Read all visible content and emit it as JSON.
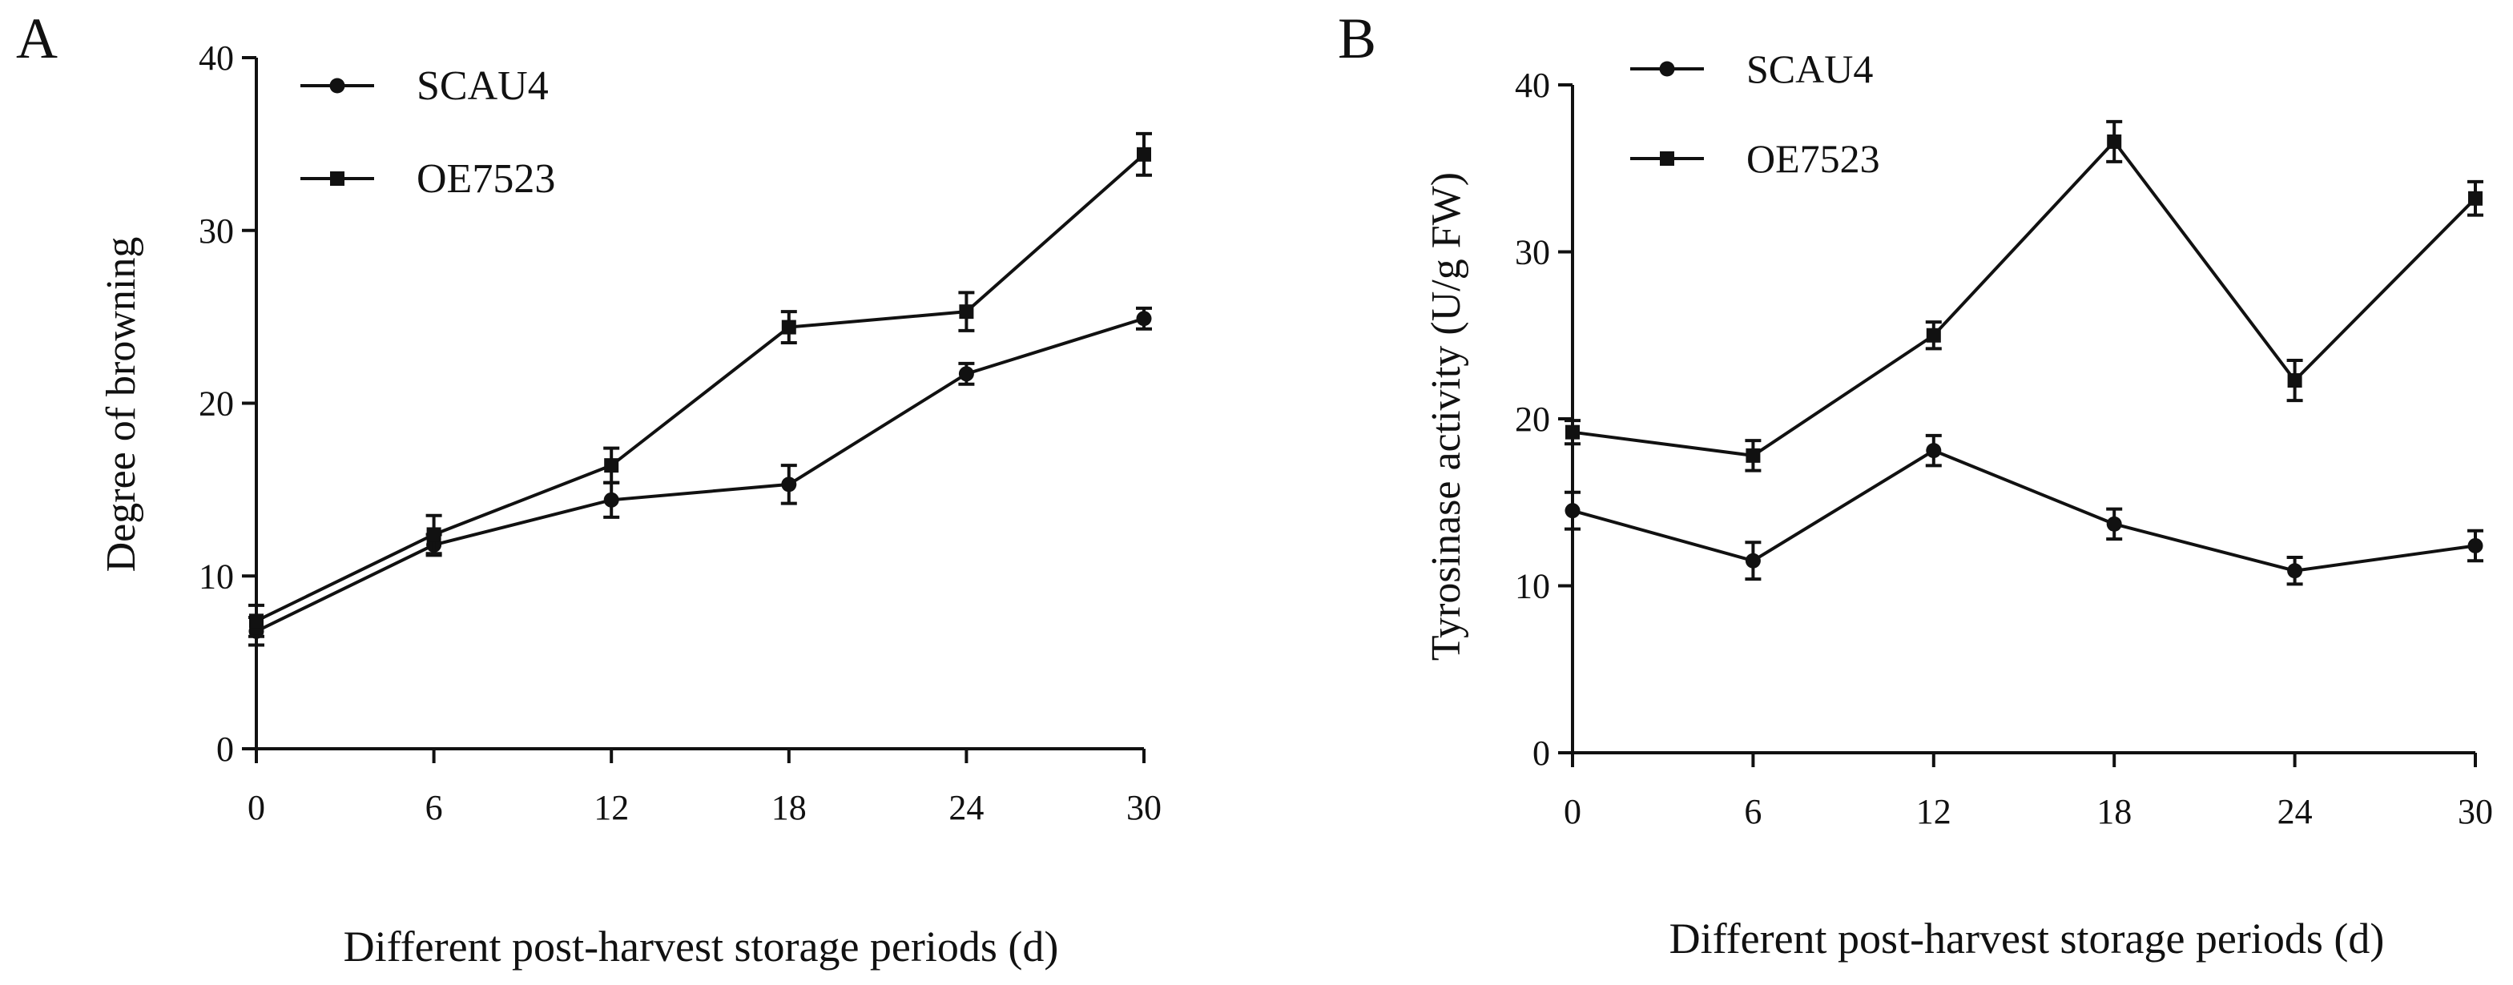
{
  "chart_data": [
    {
      "panel_label": "A",
      "type": "line",
      "title": "",
      "xlabel": "Different post-harvest storage periods (d)",
      "ylabel": "Degree of browning",
      "x": [
        0,
        6,
        12,
        18,
        24,
        30
      ],
      "xticks": [
        "0",
        "6",
        "12",
        "18",
        "24",
        "30"
      ],
      "yticks": [
        "0",
        "10",
        "20",
        "30",
        "40"
      ],
      "xlim": [
        0,
        30
      ],
      "ylim": [
        0,
        40
      ],
      "grid": false,
      "legend": "top-left",
      "series": [
        {
          "name": "SCAU4",
          "marker": "circle",
          "values": [
            6.8,
            11.8,
            14.4,
            15.3,
            21.7,
            24.9
          ],
          "errors": [
            0.8,
            0.6,
            1.0,
            1.1,
            0.6,
            0.6
          ]
        },
        {
          "name": "OE7523",
          "marker": "square",
          "values": [
            7.4,
            12.4,
            16.4,
            24.4,
            25.3,
            34.4
          ],
          "errors": [
            0.9,
            1.1,
            1.0,
            0.9,
            1.1,
            1.2
          ]
        }
      ]
    },
    {
      "panel_label": "B",
      "type": "line",
      "title": "",
      "xlabel": "Different post-harvest storage periods (d)",
      "ylabel": "Tyrosinase activity (U/g FW)",
      "x": [
        0,
        6,
        12,
        18,
        24,
        30
      ],
      "xticks": [
        "0",
        "6",
        "12",
        "18",
        "24",
        "30"
      ],
      "yticks": [
        "0",
        "10",
        "20",
        "30",
        "40"
      ],
      "xlim": [
        0,
        30
      ],
      "ylim": [
        0,
        40
      ],
      "grid": false,
      "legend": "top-left",
      "series": [
        {
          "name": "SCAU4",
          "marker": "circle",
          "values": [
            14.5,
            11.5,
            18.1,
            13.7,
            10.9,
            12.4
          ],
          "errors": [
            1.1,
            1.1,
            0.9,
            0.9,
            0.8,
            0.9
          ]
        },
        {
          "name": "OE7523",
          "marker": "square",
          "values": [
            19.2,
            17.8,
            25.0,
            36.6,
            22.3,
            33.2
          ],
          "errors": [
            0.7,
            0.9,
            0.8,
            1.2,
            1.2,
            1.0
          ]
        }
      ]
    }
  ]
}
